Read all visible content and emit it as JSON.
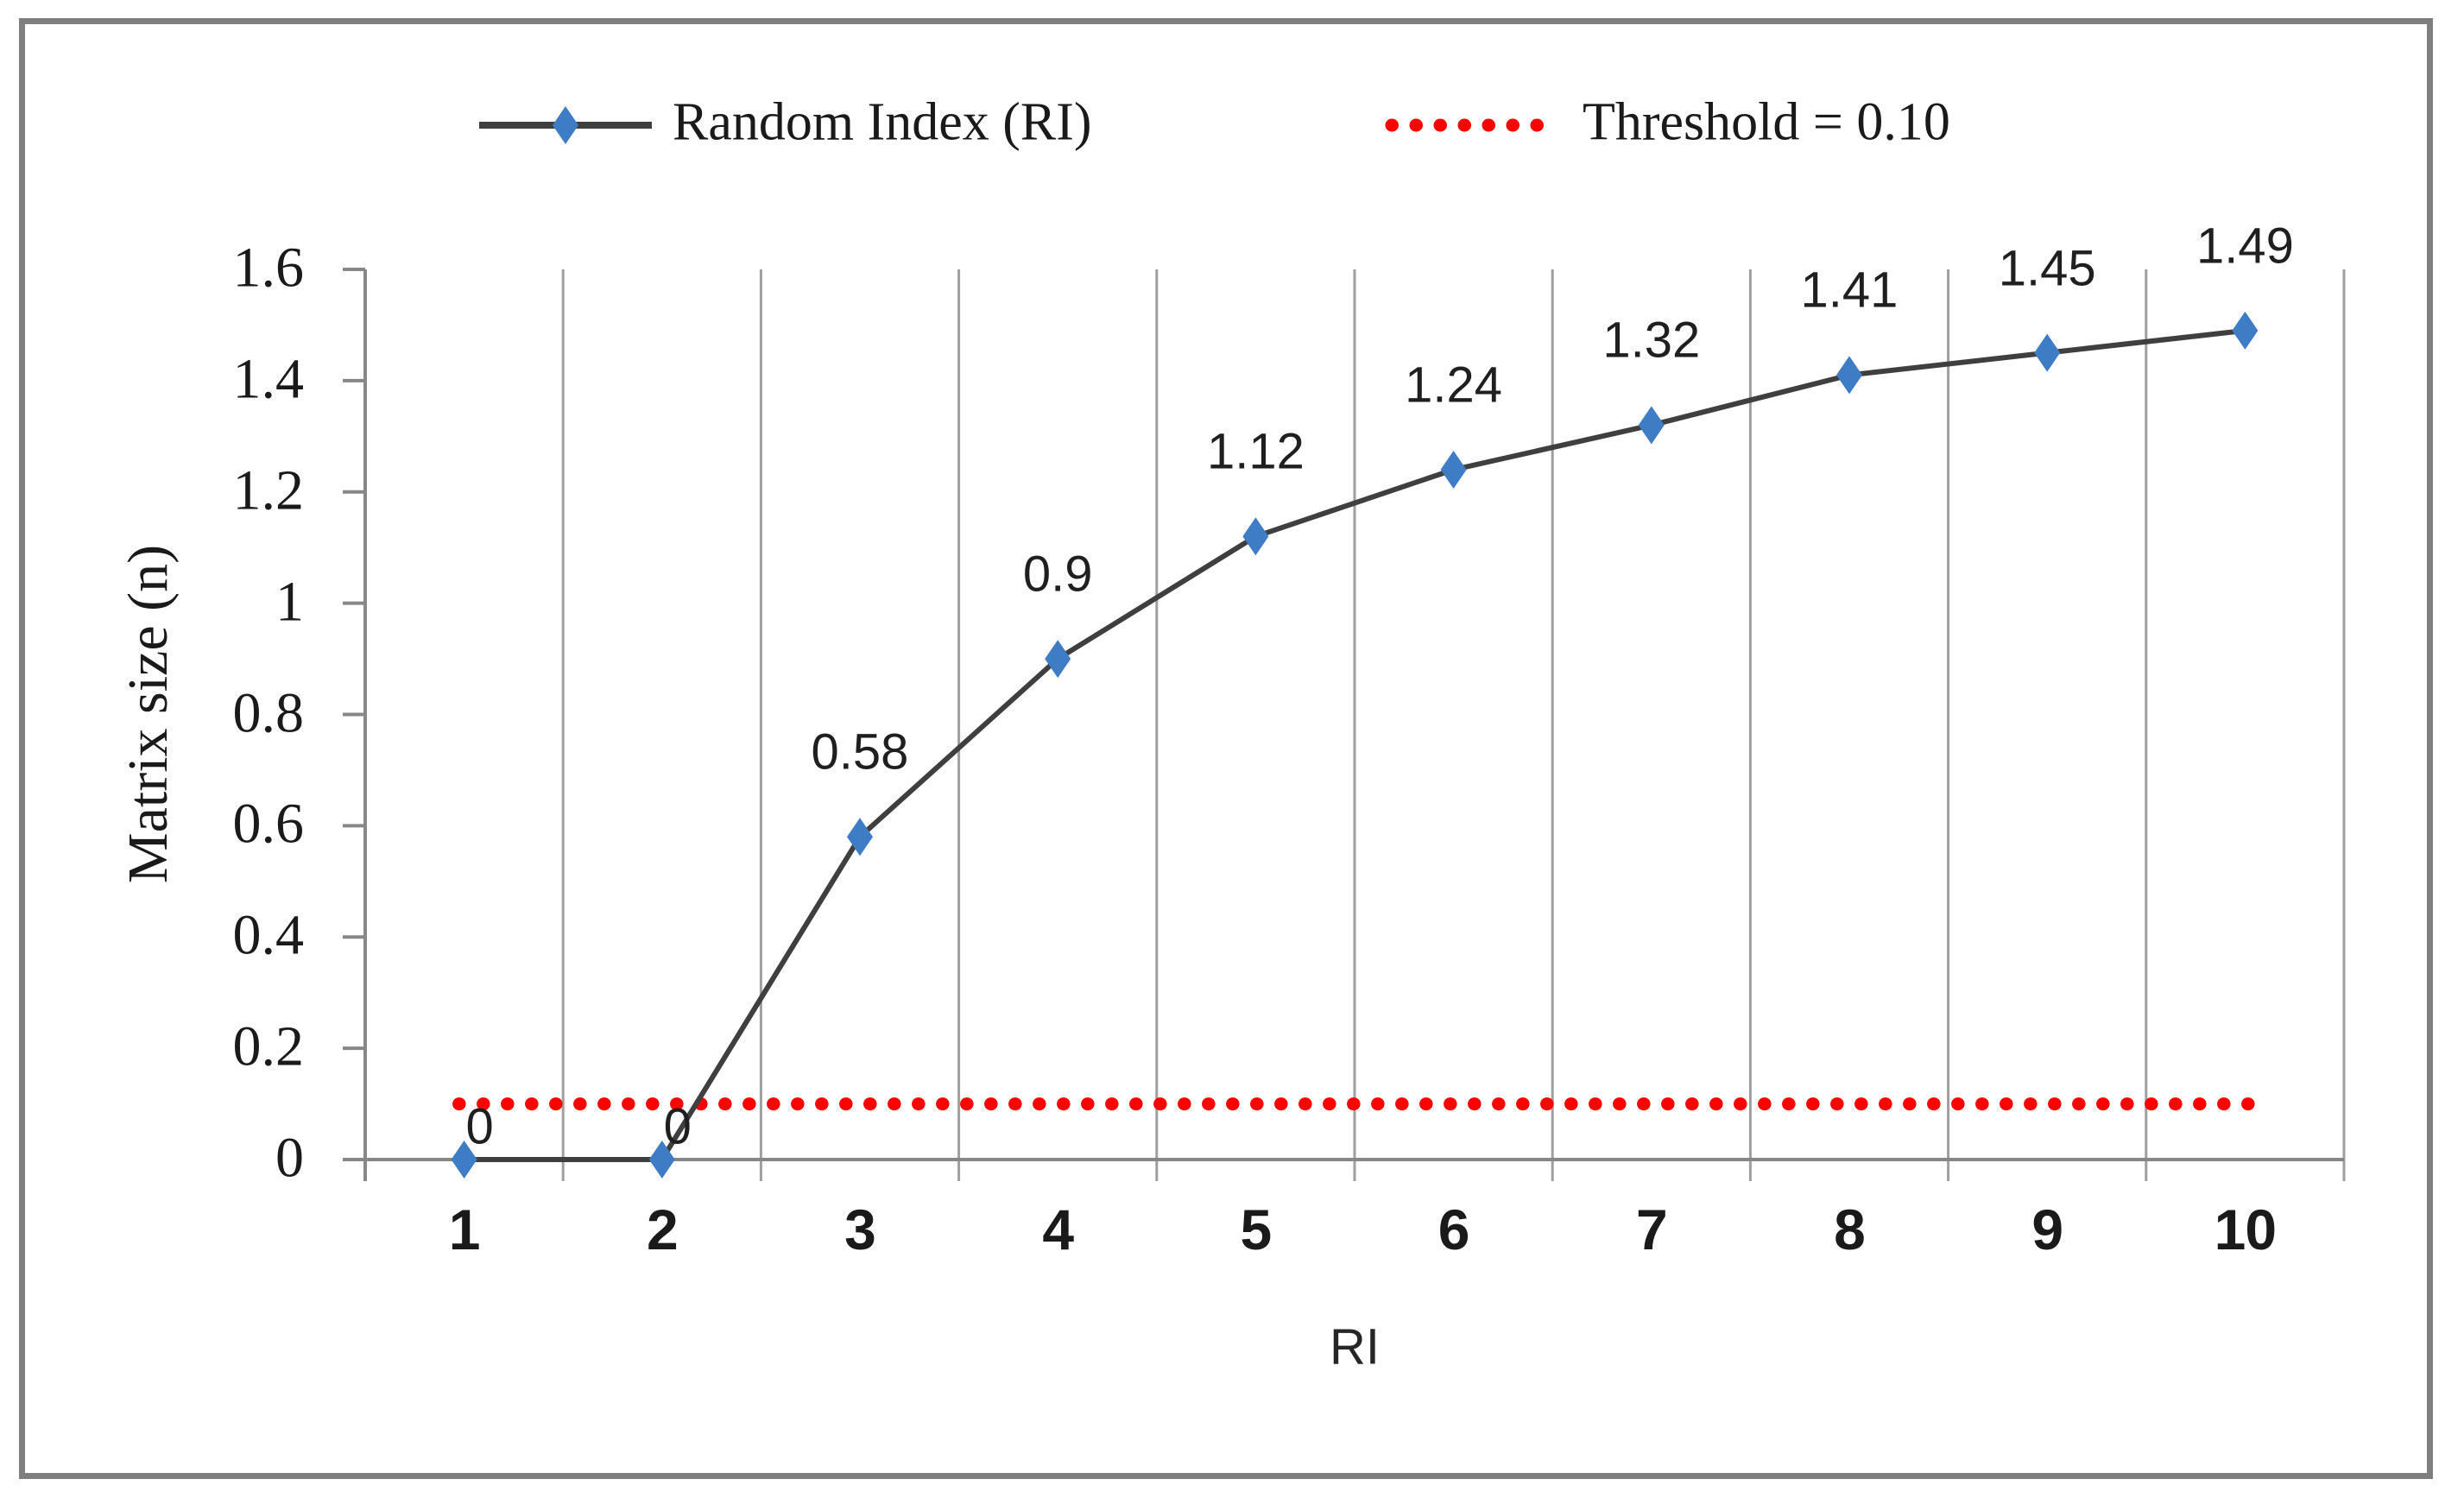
{
  "figure": {
    "background": "#ffffff",
    "border_color": "#7f7f7f"
  },
  "colors": {
    "series_line": "#3f3f3f",
    "marker_blue": "#3e7cc6",
    "threshold_red": "#ff0000",
    "gridline": "#9f9f9f",
    "axis": "#878787",
    "text": "#1a1a1a"
  },
  "chart_data": {
    "type": "line",
    "title": "",
    "xlabel": "RI",
    "ylabel": "Matrix size (n)",
    "categories": [
      1,
      2,
      3,
      4,
      5,
      6,
      7,
      8,
      9,
      10
    ],
    "xtick_labels": [
      "1",
      "2",
      "3",
      "4",
      "5",
      "6",
      "7",
      "8",
      "9",
      "10"
    ],
    "series": [
      {
        "name": "Random Index (RI)",
        "values": [
          0,
          0,
          0.58,
          0.9,
          1.12,
          1.24,
          1.32,
          1.41,
          1.45,
          1.49
        ],
        "data_labels": [
          "0",
          "0",
          "0.58",
          "0.9",
          "1.12",
          "1.24",
          "1.32",
          "1.41",
          "1.45",
          "1.49"
        ],
        "style": "solid",
        "color": "#3f3f3f",
        "marker": "diamond",
        "marker_color": "#3e7cc6"
      },
      {
        "name": "Threshold = 0.10",
        "values": [
          0.1,
          0.1,
          0.1,
          0.1,
          0.1,
          0.1,
          0.1,
          0.1,
          0.1,
          0.1
        ],
        "data_labels": [],
        "style": "dotted",
        "color": "#ff0000",
        "marker": "none",
        "marker_color": "#ff0000"
      }
    ],
    "ylim": [
      0,
      1.6
    ],
    "ytick_step": 0.2,
    "ytick_labels": [
      "0",
      "0.2",
      "0.4",
      "0.6",
      "0.8",
      "1",
      "1.2",
      "1.4",
      "1.6"
    ],
    "grid": "vertical-only",
    "legend_position": "top"
  }
}
